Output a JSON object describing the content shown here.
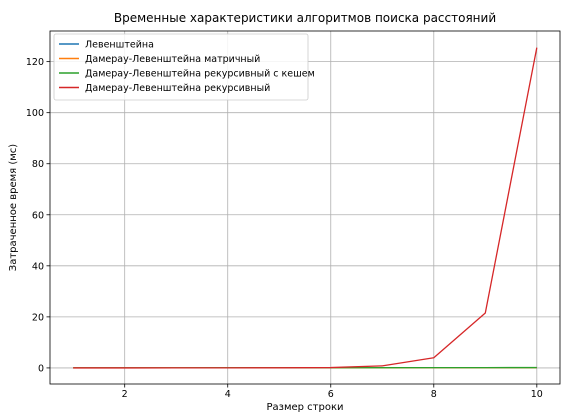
{
  "chart_data": {
    "type": "line",
    "title": "Временные характеристики алгоритмов поиска расстояний",
    "xlabel": "Размер строки",
    "ylabel": "Затраченное время (мс)",
    "xlim": [
      0.55,
      10.45
    ],
    "ylim": [
      -6.3,
      132
    ],
    "xticks": [
      2,
      4,
      6,
      8,
      10
    ],
    "yticks": [
      0,
      20,
      40,
      60,
      80,
      100,
      120
    ],
    "grid": true,
    "legend_position": "top-left",
    "x": [
      1,
      2,
      3,
      4,
      5,
      6,
      7,
      8,
      9,
      10
    ],
    "series": [
      {
        "name": "Левенштейна",
        "color": "#1f77b4",
        "values": [
          0.01,
          0.01,
          0.02,
          0.02,
          0.03,
          0.04,
          0.05,
          0.06,
          0.07,
          0.08
        ]
      },
      {
        "name": "Дамерау-Левенштейна матричный",
        "color": "#ff7f0e",
        "values": [
          0.01,
          0.01,
          0.02,
          0.02,
          0.03,
          0.04,
          0.05,
          0.06,
          0.07,
          0.09
        ]
      },
      {
        "name": "Дамерау-Левенштейна рекурсивный с кешем",
        "color": "#2ca02c",
        "values": [
          0.01,
          0.02,
          0.03,
          0.04,
          0.05,
          0.07,
          0.09,
          0.11,
          0.13,
          0.15
        ]
      },
      {
        "name": "Дамерау-Левенштейна рекурсивный",
        "color": "#d62728",
        "values": [
          0.0,
          0.0,
          0.01,
          0.02,
          0.05,
          0.15,
          0.8,
          4.0,
          21.5,
          125.5
        ]
      }
    ]
  }
}
